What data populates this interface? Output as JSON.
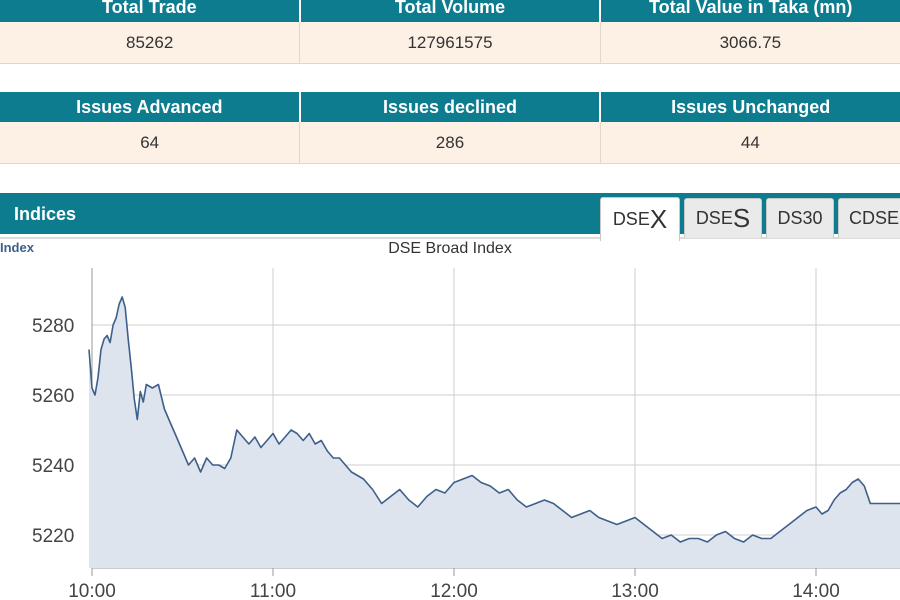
{
  "summary": {
    "headers": [
      "Total Trade",
      "Total Volume",
      "Total Value in Taka (mn)"
    ],
    "values": [
      "85262",
      "127961575",
      "3066.75"
    ]
  },
  "issues": {
    "headers": [
      "Issues Advanced",
      "Issues declined",
      "Issues Unchanged"
    ],
    "values": [
      "64",
      "286",
      "44"
    ]
  },
  "indices": {
    "title": "Indices",
    "tabs": [
      {
        "prefix": "DSE",
        "suffix": "X",
        "active": true
      },
      {
        "prefix": "DSE",
        "suffix": "S",
        "active": false
      },
      {
        "prefix": "DS30",
        "suffix": "",
        "active": false
      },
      {
        "prefix": "CDSE",
        "suffix": "",
        "active": false
      }
    ]
  },
  "chart_data": {
    "type": "area",
    "title": "DSE Broad Index",
    "ylabel": "Index",
    "xlabel": "",
    "x_ticks": [
      "10:00",
      "11:00",
      "12:00",
      "13:00",
      "14:00"
    ],
    "y_ticks": [
      5220,
      5240,
      5260,
      5280
    ],
    "ylim": [
      5210,
      5297
    ],
    "xlim": [
      "09:59",
      "14:30"
    ],
    "grid": true,
    "fill_color": "#dde4ee",
    "line_color": "#3e5f8a",
    "series": [
      {
        "x": [
          "09:59",
          "10:00",
          "10:01",
          "10:02",
          "10:03",
          "10:04",
          "10:05",
          "10:06",
          "10:07",
          "10:08",
          "10:09",
          "10:10",
          "10:11",
          "10:12",
          "10:13",
          "10:14",
          "10:15",
          "10:16",
          "10:17",
          "10:18",
          "10:20",
          "10:22",
          "10:24",
          "10:26",
          "10:28",
          "10:30",
          "10:32",
          "10:34",
          "10:36",
          "10:38",
          "10:40",
          "10:42",
          "10:44",
          "10:46",
          "10:48",
          "10:50",
          "10:52",
          "10:54",
          "10:56",
          "10:58",
          "11:00",
          "11:02",
          "11:04",
          "11:06",
          "11:08",
          "11:10",
          "11:12",
          "11:14",
          "11:16",
          "11:18",
          "11:20",
          "11:22",
          "11:24",
          "11:26",
          "11:28",
          "11:30",
          "11:33",
          "11:36",
          "11:39",
          "11:42",
          "11:45",
          "11:48",
          "11:51",
          "11:54",
          "11:57",
          "12:00",
          "12:03",
          "12:06",
          "12:09",
          "12:12",
          "12:15",
          "12:18",
          "12:21",
          "12:24",
          "12:27",
          "12:30",
          "12:33",
          "12:36",
          "12:39",
          "12:42",
          "12:45",
          "12:48",
          "12:51",
          "12:54",
          "12:57",
          "13:00",
          "13:03",
          "13:06",
          "13:09",
          "13:12",
          "13:15",
          "13:18",
          "13:21",
          "13:24",
          "13:27",
          "13:30",
          "13:33",
          "13:36",
          "13:39",
          "13:42",
          "13:45",
          "13:48",
          "13:51",
          "13:54",
          "13:57",
          "14:00",
          "14:02",
          "14:04",
          "14:06",
          "14:08",
          "14:10",
          "14:12",
          "14:14",
          "14:16",
          "14:18",
          "14:20",
          "14:30"
        ],
        "y": [
          5273,
          5262,
          5260,
          5265,
          5273,
          5276,
          5277,
          5275,
          5280,
          5282,
          5286,
          5288,
          5285,
          5276,
          5268,
          5259,
          5253,
          5261,
          5258,
          5263,
          5262,
          5263,
          5256,
          5252,
          5248,
          5244,
          5240,
          5242,
          5238,
          5242,
          5240,
          5240,
          5239,
          5242,
          5250,
          5248,
          5246,
          5248,
          5245,
          5247,
          5249,
          5246,
          5248,
          5250,
          5249,
          5247,
          5249,
          5246,
          5247,
          5244,
          5242,
          5242,
          5240,
          5238,
          5237,
          5236,
          5233,
          5229,
          5231,
          5233,
          5230,
          5228,
          5231,
          5233,
          5232,
          5235,
          5236,
          5237,
          5235,
          5234,
          5232,
          5233,
          5230,
          5228,
          5229,
          5230,
          5229,
          5227,
          5225,
          5226,
          5227,
          5225,
          5224,
          5223,
          5224,
          5225,
          5223,
          5221,
          5219,
          5220,
          5218,
          5219,
          5219,
          5218,
          5220,
          5221,
          5219,
          5218,
          5220,
          5219,
          5219,
          5221,
          5223,
          5225,
          5227,
          5228,
          5226,
          5227,
          5230,
          5232,
          5233,
          5235,
          5236,
          5234,
          5229,
          5229,
          5229
        ]
      }
    ]
  }
}
